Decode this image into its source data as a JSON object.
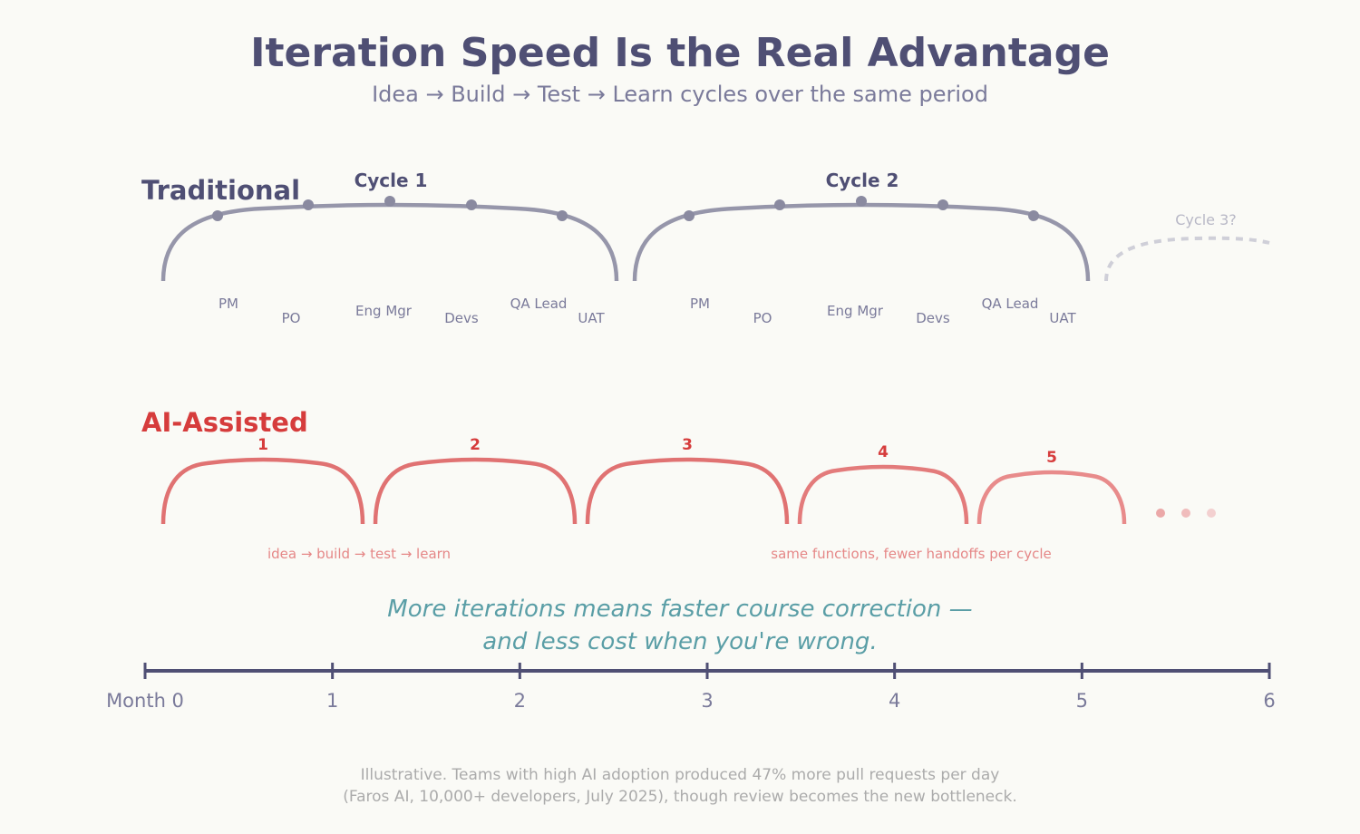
{
  "title": "Iteration Speed Is the Real Advantage",
  "subtitle": "Idea → Build → Test → Learn cycles over the same period",
  "traditional": {
    "label": "Traditional",
    "cycles": [
      "Cycle 1",
      "Cycle 2"
    ],
    "roles": [
      "PM",
      "PO",
      "Eng Mgr",
      "Devs",
      "QA Lead",
      "UAT"
    ],
    "next_cycle": "Cycle 3?"
  },
  "ai_assisted": {
    "label": "AI-Assisted",
    "cycles": [
      "1",
      "2",
      "3",
      "4",
      "5"
    ],
    "note_left": "idea → build → test → learn",
    "note_right": "same functions, fewer handoffs per cycle"
  },
  "callout": {
    "line1": "More iterations means faster course correction —",
    "line2": "and less cost when you're wrong."
  },
  "axis": {
    "ticks": [
      "Month 0",
      "1",
      "2",
      "3",
      "4",
      "5",
      "6"
    ]
  },
  "footnote": {
    "line1": "Illustrative. Teams with high AI adoption produced 47% more pull requests per day",
    "line2": "(Faros AI, 10,000+ developers, July 2025), though review becomes the new bottleneck."
  },
  "colors": {
    "traditional": "#9696aa",
    "ai": "#e07272",
    "title": "#4f4f74",
    "callout": "#5a9ea6"
  }
}
